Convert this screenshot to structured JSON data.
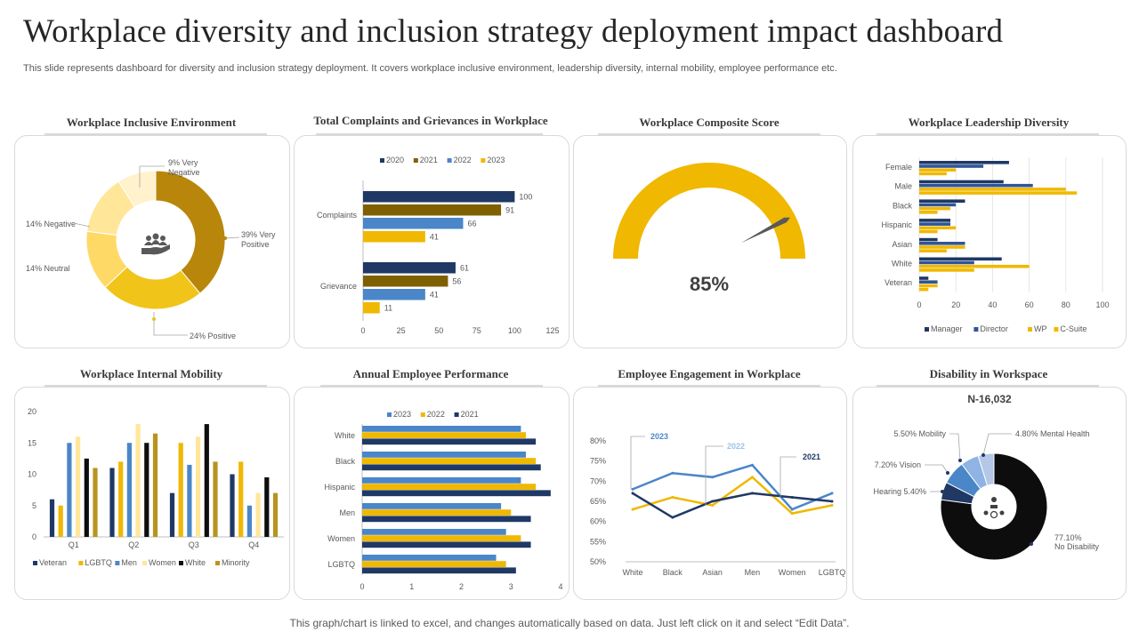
{
  "page": {
    "title": "Workplace diversity and inclusion strategy deployment impact dashboard",
    "subtitle": "This slide represents dashboard for diversity and inclusion strategy deployment. It covers workplace inclusive environment, leadership diversity, internal mobility, employee performance etc.",
    "footer": "This graph/chart is linked to excel,  and changes automatically based on data. Just left click on it and select “Edit Data”."
  },
  "colors": {
    "navy": "#1f3864",
    "gold": "#b8860b",
    "olive": "#7f6000",
    "blue": "#4a86c8",
    "yellow": "#f0b800",
    "lightyellow": "#ffd966",
    "paleyellow": "#ffe699",
    "creamy": "#fff2cc",
    "black": "#0d0d0d",
    "grey": "#595959",
    "lightblue": "#8fb4e3",
    "paleblue": "#b4c7e7"
  },
  "chart_data": [
    {
      "id": "inclusive",
      "type": "pie",
      "title": "Workplace Inclusive Environment",
      "center_icon": "people-hand-icon",
      "slices": [
        {
          "label": "39% Very Positive",
          "value": 39,
          "color": "#b8860b"
        },
        {
          "label": "24% Positive",
          "value": 24,
          "color": "#f0c419"
        },
        {
          "label": "14% Neutral",
          "value": 14,
          "color": "#ffd966"
        },
        {
          "label": "14% Negative",
          "value": 14,
          "color": "#ffe699"
        },
        {
          "label": "9% Very Negative",
          "value": 9,
          "color": "#fff2cc"
        }
      ]
    },
    {
      "id": "complaints",
      "type": "bar",
      "orientation": "horizontal",
      "title": "Total Complaints and Grievances in Workplace",
      "categories": [
        "Complaints",
        "Grievance"
      ],
      "series": [
        {
          "name": "2020",
          "values": [
            100,
            61
          ],
          "color": "#1f3864"
        },
        {
          "name": "2021",
          "values": [
            91,
            56
          ],
          "color": "#7f6000"
        },
        {
          "name": "2022",
          "values": [
            66,
            41
          ],
          "color": "#4a86c8"
        },
        {
          "name": "2023",
          "values": [
            41,
            11
          ],
          "color": "#f0b800"
        }
      ],
      "xlim": [
        0,
        125
      ],
      "xticks": [
        0,
        25,
        50,
        75,
        100,
        125
      ],
      "legend": "top"
    },
    {
      "id": "composite",
      "type": "gauge",
      "title": "Workplace Composite Score",
      "value": 85,
      "value_label": "85%"
    },
    {
      "id": "leadership",
      "type": "bar",
      "orientation": "horizontal",
      "title": "Workplace Leadership Diversity",
      "categories": [
        "Female",
        "Male",
        "Black",
        "Hispanic",
        "Asian",
        "White",
        "Veteran"
      ],
      "series": [
        {
          "name": "Manager",
          "values": [
            49,
            46,
            25,
            17,
            10,
            45,
            5
          ],
          "color": "#1f3864"
        },
        {
          "name": "Director",
          "values": [
            35,
            62,
            20,
            17,
            25,
            30,
            10
          ],
          "color": "#2f5597"
        },
        {
          "name": "WP",
          "values": [
            20,
            80,
            17,
            20,
            25,
            60,
            10
          ],
          "color": "#f0b800"
        },
        {
          "name": "C-Suite",
          "values": [
            15,
            86,
            10,
            10,
            15,
            30,
            5
          ],
          "color": "#f0b800"
        }
      ],
      "xlim": [
        0,
        100
      ],
      "xticks": [
        0,
        20,
        40,
        60,
        80,
        100
      ],
      "legend": "bottom"
    },
    {
      "id": "mobility",
      "type": "bar",
      "orientation": "vertical",
      "title": "Workplace Internal Mobility",
      "categories": [
        "Q1",
        "Q2",
        "Q3",
        "Q4"
      ],
      "series": [
        {
          "name": "Veteran",
          "values": [
            6,
            11,
            7,
            10
          ],
          "color": "#1f3864"
        },
        {
          "name": "LGBTQ",
          "values": [
            5,
            12,
            15,
            12
          ],
          "color": "#f0b800"
        },
        {
          "name": "Men",
          "values": [
            15,
            15,
            11.5,
            5
          ],
          "color": "#4a86c8"
        },
        {
          "name": "Women",
          "values": [
            16,
            18,
            16,
            7
          ],
          "color": "#ffe699"
        },
        {
          "name": "White",
          "values": [
            12.5,
            15,
            18,
            9.5
          ],
          "color": "#0d0d0d"
        },
        {
          "name": "Minority",
          "values": [
            11,
            16.5,
            12,
            7
          ],
          "color": "#b8941f"
        }
      ],
      "ylim": [
        0,
        20
      ],
      "yticks": [
        0,
        5,
        10,
        15,
        20
      ],
      "legend": "bottom"
    },
    {
      "id": "performance",
      "type": "bar",
      "orientation": "horizontal",
      "title": "Annual Employee Performance",
      "categories": [
        "White",
        "Black",
        "Hispanic",
        "Men",
        "Women",
        "LGBTQ"
      ],
      "series": [
        {
          "name": "2023",
          "values": [
            3.2,
            3.3,
            3.2,
            2.8,
            2.9,
            2.7
          ],
          "color": "#4a86c8"
        },
        {
          "name": "2022",
          "values": [
            3.3,
            3.5,
            3.5,
            3.0,
            3.2,
            2.9
          ],
          "color": "#f0b800"
        },
        {
          "name": "2021",
          "values": [
            3.5,
            3.6,
            3.8,
            3.4,
            3.4,
            3.1
          ],
          "color": "#1f3864"
        }
      ],
      "xlim": [
        0,
        4
      ],
      "xticks": [
        0,
        1,
        2,
        3,
        4
      ],
      "legend": "top"
    },
    {
      "id": "engagement",
      "type": "line",
      "title": "Employee Engagement in Workplace",
      "categories": [
        "White",
        "Black",
        "Asian",
        "Men",
        "Women",
        "LGBTQ"
      ],
      "series": [
        {
          "name": "2023",
          "values": [
            68,
            72,
            71,
            74,
            63,
            67
          ],
          "color": "#4a86c8"
        },
        {
          "name": "2022",
          "values": [
            63,
            66,
            64,
            71,
            62,
            64
          ],
          "color": "#f0b800"
        },
        {
          "name": "2021",
          "values": [
            67,
            61,
            65,
            67,
            66,
            65
          ],
          "color": "#1f3864"
        }
      ],
      "ylim": [
        50,
        80
      ],
      "yticks": [
        "50%",
        "55%",
        "60%",
        "65%",
        "70%",
        "75%",
        "80%"
      ],
      "legend": "callouts"
    },
    {
      "id": "disability",
      "type": "pie",
      "title": "Disability in Workspace",
      "total_label": "N-16,032",
      "center_icon": "people-cycle-icon",
      "slices": [
        {
          "label": "77.10% No Disability",
          "value": 77.1,
          "color": "#0d0d0d"
        },
        {
          "label": "Hearing 5.40%",
          "value": 5.4,
          "color": "#1f3864"
        },
        {
          "label": "7.20% Vision",
          "value": 7.2,
          "color": "#4a86c8"
        },
        {
          "label": "5.50% Mobility",
          "value": 5.5,
          "color": "#8fb4e3"
        },
        {
          "label": "4.80% Mental  Health",
          "value": 4.8,
          "color": "#b4c7e7"
        }
      ]
    }
  ]
}
